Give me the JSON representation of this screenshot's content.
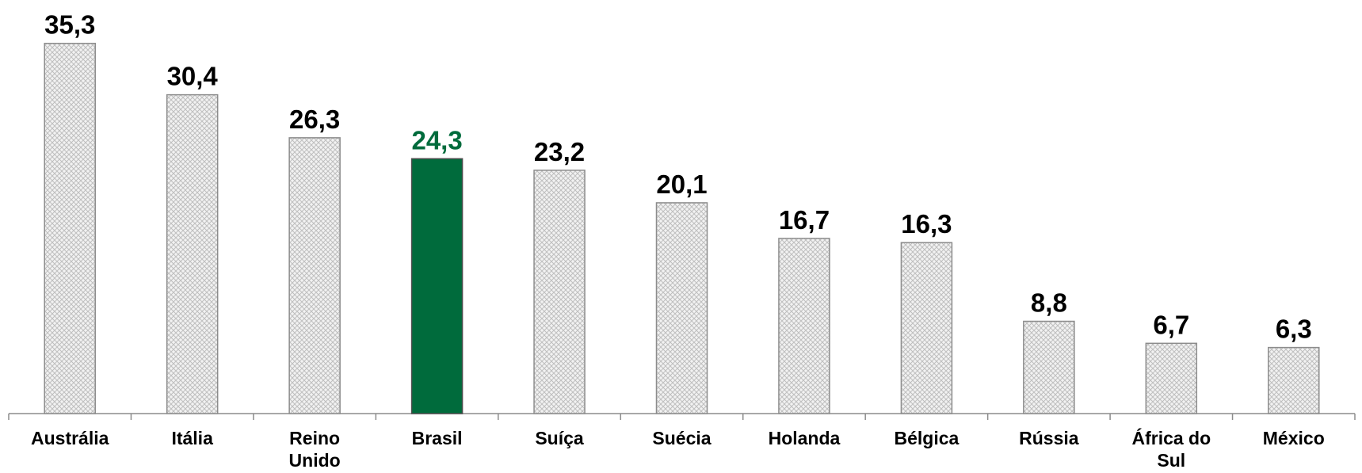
{
  "chart_data": {
    "type": "bar",
    "categories": [
      "Austrália",
      "Itália",
      "Reino Unido",
      "Brasil",
      "Suíça",
      "Suécia",
      "Holanda",
      "Bélgica",
      "Rússia",
      "África do Sul",
      "México"
    ],
    "values": [
      35.3,
      30.4,
      26.3,
      24.3,
      23.2,
      20.1,
      16.7,
      16.3,
      8.8,
      6.7,
      6.3
    ],
    "value_labels": [
      "35,3",
      "30,4",
      "26,3",
      "24,3",
      "23,2",
      "20,1",
      "16,7",
      "16,3",
      "8,8",
      "6,7",
      "6,3"
    ],
    "colors": [
      "#bfbfbf",
      "#bfbfbf",
      "#bfbfbf",
      "#006b3c",
      "#bfbfbf",
      "#bfbfbf",
      "#bfbfbf",
      "#bfbfbf",
      "#bfbfbf",
      "#bfbfbf",
      "#bfbfbf"
    ],
    "ylim": [
      0,
      38
    ]
  }
}
